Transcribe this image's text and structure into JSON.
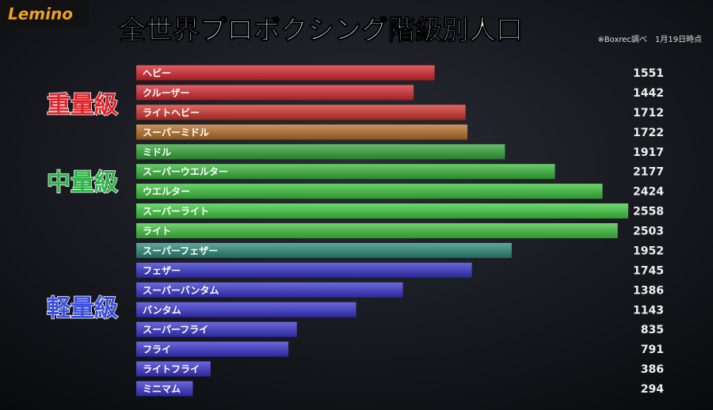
{
  "chart_data": {
    "type": "hbar",
    "title": "全世界プロボクシング階級別人口",
    "subtitle": "※Boxrec調べ　1月19日時点",
    "logo": "Lemino",
    "groups": [
      {
        "label": "重量級",
        "color": "#e0262c"
      },
      {
        "label": "中量級",
        "color": "#2fb34a"
      },
      {
        "label": "軽量級",
        "color": "#3a4ee0"
      }
    ],
    "categories": [
      "ヘビー",
      "クルーザー",
      "ライトヘビー",
      "スーパーミドル",
      "ミドル",
      "スーパーウエルター",
      "ウエルター",
      "スーパーライト",
      "ライト",
      "スーパーフェザー",
      "フェザー",
      "スーパーバンタム",
      "バンタム",
      "スーパーフライ",
      "フライ",
      "ライトフライ",
      "ミニマム"
    ],
    "values": [
      1551,
      1442,
      1712,
      1722,
      1917,
      2177,
      2424,
      2558,
      2503,
      1952,
      1745,
      1386,
      1143,
      835,
      791,
      386,
      294
    ],
    "colors": [
      "#d8262c",
      "#d82a32",
      "#d2362e",
      "#b8702a",
      "#36a83a",
      "#38b83a",
      "#3cc43c",
      "#40cc40",
      "#40c440",
      "#2a8a78",
      "#3535cc",
      "#3a35d0",
      "#3a35d0",
      "#3a35d0",
      "#3a35d0",
      "#3a35d0",
      "#3a35d0"
    ]
  }
}
